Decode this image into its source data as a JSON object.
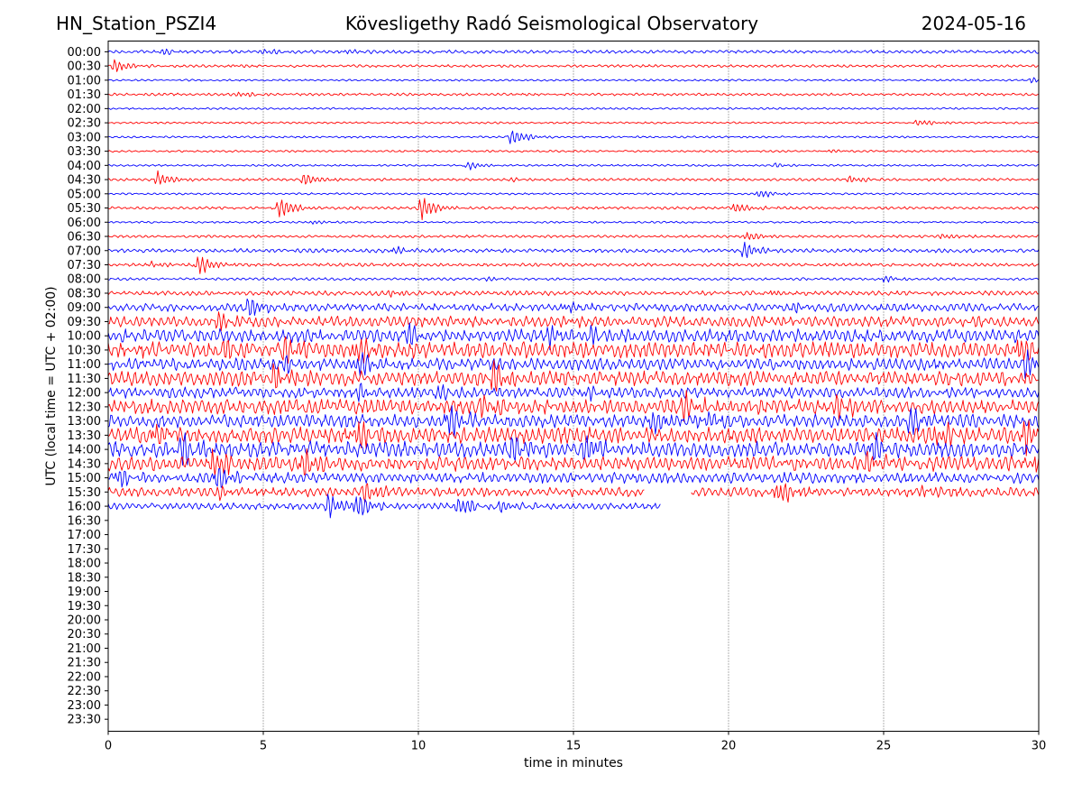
{
  "header": {
    "station": "HN_Station_PSZI4",
    "observatory": "Kövesligethy Radó Seismological Observatory",
    "date": "2024-05-16"
  },
  "colors": {
    "blue": "#0000ff",
    "red": "#ff0000",
    "grid": "#000000"
  },
  "chart_data": {
    "type": "line",
    "title": "Kövesligethy Radó Seismological Observatory",
    "xlabel": "time in minutes",
    "ylabel": "UTC (local time = UTC + 02:00)",
    "xlim": [
      0,
      30
    ],
    "x_ticks": [
      0,
      5,
      10,
      15,
      20,
      25,
      30
    ],
    "x_tick_labels": [
      "0",
      "5",
      "10",
      "15",
      "20",
      "25",
      "30"
    ],
    "grid_x": [
      5,
      10,
      15,
      20,
      25
    ],
    "rows": [
      "00:00",
      "00:30",
      "01:00",
      "01:30",
      "02:00",
      "02:30",
      "03:00",
      "03:30",
      "04:00",
      "04:30",
      "05:00",
      "05:30",
      "06:00",
      "06:30",
      "07:00",
      "07:30",
      "08:00",
      "08:30",
      "09:00",
      "09:30",
      "10:00",
      "10:30",
      "11:00",
      "11:30",
      "12:00",
      "12:30",
      "13:00",
      "13:30",
      "14:00",
      "14:30",
      "15:00",
      "15:30",
      "16:00",
      "16:30",
      "17:00",
      "17:30",
      "18:00",
      "18:30",
      "19:00",
      "19:30",
      "20:00",
      "20:30",
      "21:00",
      "21:30",
      "22:00",
      "22:30",
      "23:00",
      "23:30"
    ],
    "series_color_pattern": [
      "blue",
      "red"
    ],
    "traces": [
      {
        "row": "00:00",
        "color": "blue",
        "x_end": 30,
        "noise": 0.25,
        "events": [
          {
            "t": 1.7,
            "amp": 0.5
          },
          {
            "t": 5.0,
            "amp": 0.4
          },
          {
            "t": 7.6,
            "amp": 0.35
          }
        ]
      },
      {
        "row": "00:30",
        "color": "red",
        "x_end": 30,
        "noise": 0.2,
        "events": [
          {
            "t": 0.2,
            "amp": 0.9
          },
          {
            "t": 4.0,
            "amp": 0.25
          }
        ]
      },
      {
        "row": "01:00",
        "color": "blue",
        "x_end": 30,
        "noise": 0.15,
        "events": [
          {
            "t": 29.8,
            "amp": 0.4
          }
        ]
      },
      {
        "row": "01:30",
        "color": "red",
        "x_end": 30,
        "noise": 0.2,
        "events": [
          {
            "t": 4.2,
            "amp": 0.4
          }
        ]
      },
      {
        "row": "02:00",
        "color": "blue",
        "x_end": 30,
        "noise": 0.15,
        "events": []
      },
      {
        "row": "02:30",
        "color": "red",
        "x_end": 30,
        "noise": 0.15,
        "events": [
          {
            "t": 26.1,
            "amp": 0.5
          }
        ]
      },
      {
        "row": "03:00",
        "color": "blue",
        "x_end": 30,
        "noise": 0.15,
        "events": [
          {
            "t": 13.0,
            "amp": 1.2
          }
        ]
      },
      {
        "row": "03:30",
        "color": "red",
        "x_end": 30,
        "noise": 0.15,
        "events": [
          {
            "t": 23.2,
            "amp": 0.3
          }
        ]
      },
      {
        "row": "04:00",
        "color": "blue",
        "x_end": 30,
        "noise": 0.15,
        "events": [
          {
            "t": 11.6,
            "amp": 0.6
          },
          {
            "t": 21.5,
            "amp": 0.3
          }
        ]
      },
      {
        "row": "04:30",
        "color": "red",
        "x_end": 30,
        "noise": 0.2,
        "events": [
          {
            "t": 1.6,
            "amp": 1.0
          },
          {
            "t": 6.3,
            "amp": 0.9
          },
          {
            "t": 13.0,
            "amp": 0.3
          },
          {
            "t": 23.9,
            "amp": 0.5
          }
        ]
      },
      {
        "row": "05:00",
        "color": "blue",
        "x_end": 30,
        "noise": 0.15,
        "events": [
          {
            "t": 21.0,
            "amp": 0.6
          }
        ]
      },
      {
        "row": "05:30",
        "color": "red",
        "x_end": 30,
        "noise": 0.2,
        "events": [
          {
            "t": 5.5,
            "amp": 1.6
          },
          {
            "t": 10.1,
            "amp": 1.6
          },
          {
            "t": 20.2,
            "amp": 0.8
          }
        ]
      },
      {
        "row": "06:00",
        "color": "blue",
        "x_end": 30,
        "noise": 0.15,
        "events": [
          {
            "t": 6.6,
            "amp": 0.35
          }
        ]
      },
      {
        "row": "06:30",
        "color": "red",
        "x_end": 30,
        "noise": 0.2,
        "events": [
          {
            "t": 20.6,
            "amp": 0.7
          },
          {
            "t": 26.9,
            "amp": 0.4
          }
        ]
      },
      {
        "row": "07:00",
        "color": "blue",
        "x_end": 30,
        "noise": 0.3,
        "events": [
          {
            "t": 9.2,
            "amp": 0.6
          },
          {
            "t": 20.5,
            "amp": 1.2
          }
        ]
      },
      {
        "row": "07:30",
        "color": "red",
        "x_end": 30,
        "noise": 0.25,
        "events": [
          {
            "t": 2.9,
            "amp": 1.4
          },
          {
            "t": 1.4,
            "amp": 0.4
          }
        ]
      },
      {
        "row": "08:00",
        "color": "blue",
        "x_end": 30,
        "noise": 0.2,
        "events": [
          {
            "t": 12.2,
            "amp": 0.3
          },
          {
            "t": 25.0,
            "amp": 0.5
          }
        ]
      },
      {
        "row": "08:30",
        "color": "red",
        "x_end": 30,
        "noise": 0.35,
        "events": [
          {
            "t": 9.1,
            "amp": 0.5
          },
          {
            "t": 21.4,
            "amp": 0.4
          }
        ]
      },
      {
        "row": "09:00",
        "color": "blue",
        "x_end": 30,
        "noise": 0.6,
        "events": [
          {
            "t": 4.5,
            "amp": 1.6
          },
          {
            "t": 14.7,
            "amp": 0.6
          },
          {
            "t": 22.1,
            "amp": 0.8
          }
        ]
      },
      {
        "row": "09:30",
        "color": "red",
        "x_end": 30,
        "noise": 0.8,
        "events": [
          {
            "t": 3.5,
            "amp": 1.6
          },
          {
            "t": 14.6,
            "amp": 0.6
          }
        ]
      },
      {
        "row": "10:00",
        "color": "blue",
        "x_end": 30,
        "noise": 1.0,
        "events": [
          {
            "t": 9.6,
            "amp": 1.8
          },
          {
            "t": 14.2,
            "amp": 1.5
          },
          {
            "t": 15.6,
            "amp": 1.2
          }
        ]
      },
      {
        "row": "10:30",
        "color": "red",
        "x_end": 30,
        "noise": 1.2,
        "events": [
          {
            "t": 3.7,
            "amp": 2.0
          },
          {
            "t": 5.7,
            "amp": 2.0
          },
          {
            "t": 8.0,
            "amp": 2.0
          },
          {
            "t": 29.3,
            "amp": 2.0
          }
        ]
      },
      {
        "row": "11:00",
        "color": "blue",
        "x_end": 30,
        "noise": 0.9,
        "events": [
          {
            "t": 5.7,
            "amp": 1.4
          },
          {
            "t": 8.0,
            "amp": 1.6
          },
          {
            "t": 29.6,
            "amp": 1.8
          }
        ]
      },
      {
        "row": "11:30",
        "color": "red",
        "x_end": 30,
        "noise": 1.1,
        "events": [
          {
            "t": 5.3,
            "amp": 1.8
          },
          {
            "t": 12.4,
            "amp": 2.3
          }
        ]
      },
      {
        "row": "12:00",
        "color": "blue",
        "x_end": 30,
        "noise": 0.8,
        "events": [
          {
            "t": 8.1,
            "amp": 1.0
          },
          {
            "t": 10.6,
            "amp": 1.0
          },
          {
            "t": 15.3,
            "amp": 0.8
          }
        ]
      },
      {
        "row": "12:30",
        "color": "red",
        "x_end": 30,
        "noise": 1.1,
        "events": [
          {
            "t": 12.0,
            "amp": 1.4
          },
          {
            "t": 18.5,
            "amp": 1.8
          },
          {
            "t": 23.5,
            "amp": 1.4
          }
        ]
      },
      {
        "row": "13:00",
        "color": "blue",
        "x_end": 30,
        "noise": 1.0,
        "events": [
          {
            "t": 11.0,
            "amp": 2.2
          },
          {
            "t": 17.5,
            "amp": 1.4
          },
          {
            "t": 19.0,
            "amp": 1.4
          },
          {
            "t": 25.8,
            "amp": 1.8
          }
        ]
      },
      {
        "row": "13:30",
        "color": "red",
        "x_end": 30,
        "noise": 1.2,
        "events": [
          {
            "t": 8.0,
            "amp": 2.4
          },
          {
            "t": 1.5,
            "amp": 1.4
          },
          {
            "t": 26.7,
            "amp": 2.0
          },
          {
            "t": 29.6,
            "amp": 2.2
          }
        ]
      },
      {
        "row": "14:00",
        "color": "blue",
        "x_end": 30,
        "noise": 1.2,
        "events": [
          {
            "t": 2.3,
            "amp": 2.0
          },
          {
            "t": 13.0,
            "amp": 1.8
          },
          {
            "t": 15.4,
            "amp": 2.0
          },
          {
            "t": 24.6,
            "amp": 1.8
          }
        ]
      },
      {
        "row": "14:30",
        "color": "red",
        "x_end": 30,
        "noise": 1.1,
        "events": [
          {
            "t": 3.4,
            "amp": 2.1
          },
          {
            "t": 6.3,
            "amp": 1.6
          },
          {
            "t": 24.5,
            "amp": 1.6
          },
          {
            "t": 29.9,
            "amp": 1.8
          }
        ]
      },
      {
        "row": "15:00",
        "color": "blue",
        "x_end": 30,
        "noise": 0.8,
        "events": [
          {
            "t": 0.3,
            "amp": 1.4
          },
          {
            "t": 3.5,
            "amp": 1.6
          },
          {
            "t": 14.0,
            "amp": 0.6
          }
        ]
      },
      {
        "row": "15:30",
        "color": "red",
        "x_end": 17.3,
        "noise": 0.7,
        "events": [
          {
            "t": 8.3,
            "amp": 1.5
          },
          {
            "t": 3.5,
            "amp": 0.8
          }
        ]
      },
      {
        "row": "15:30",
        "color": "red",
        "x_start": 18.8,
        "x_end": 30,
        "noise": 0.7,
        "events": [
          {
            "t": 21.6,
            "amp": 1.8
          },
          {
            "t": 26.3,
            "amp": 1.0
          }
        ]
      },
      {
        "row": "16:00",
        "color": "blue",
        "x_end": 17.8,
        "noise": 0.5,
        "events": [
          {
            "t": 7.1,
            "amp": 1.6
          },
          {
            "t": 8.0,
            "amp": 1.6
          },
          {
            "t": 11.3,
            "amp": 1.4
          },
          {
            "t": 12.6,
            "amp": 0.8
          }
        ]
      }
    ]
  }
}
